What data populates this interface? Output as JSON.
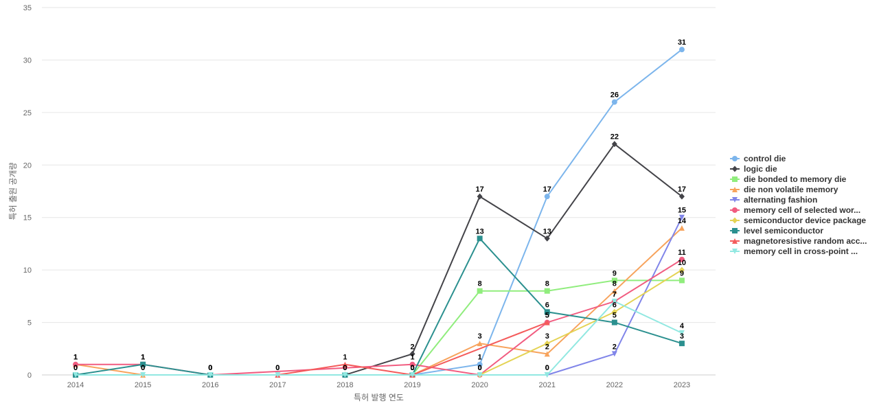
{
  "chart_data": {
    "type": "line",
    "xlabel": "특허 발행 연도",
    "ylabel": "특허 출원 공개량",
    "ylim": [
      0,
      35
    ],
    "yticks": [
      0,
      5,
      10,
      15,
      20,
      25,
      30,
      35
    ],
    "categories": [
      "2014",
      "2015",
      "2016",
      "2017",
      "2018",
      "2019",
      "2020",
      "2021",
      "2022",
      "2023"
    ],
    "grid": true,
    "legend_position": "right",
    "series": [
      {
        "name": "control die",
        "color": "#7cb5ec",
        "marker": "circle",
        "values": [
          null,
          null,
          null,
          null,
          null,
          0,
          1,
          17,
          26,
          31
        ]
      },
      {
        "name": "logic die",
        "color": "#434348",
        "marker": "diamond",
        "values": [
          null,
          null,
          null,
          null,
          0,
          2,
          17,
          13,
          22,
          17
        ]
      },
      {
        "name": "die bonded to memory die",
        "color": "#90ed7d",
        "marker": "square",
        "values": [
          null,
          null,
          null,
          null,
          null,
          0,
          8,
          8,
          9,
          9
        ]
      },
      {
        "name": "die non volatile memory",
        "color": "#f7a35c",
        "marker": "triangle",
        "values": [
          1,
          0,
          null,
          null,
          null,
          0,
          3,
          2,
          8,
          14
        ]
      },
      {
        "name": "alternating fashion",
        "color": "#8085e9",
        "marker": "triangle-down",
        "values": [
          null,
          null,
          null,
          null,
          null,
          null,
          null,
          0,
          2,
          15
        ]
      },
      {
        "name": "memory cell of selected wor...",
        "color": "#f15c80",
        "marker": "circle",
        "values": [
          1,
          1,
          0,
          null,
          null,
          1,
          0,
          5,
          7,
          11
        ]
      },
      {
        "name": "semiconductor device package",
        "color": "#e4d354",
        "marker": "diamond",
        "values": [
          null,
          null,
          null,
          null,
          null,
          null,
          0,
          3,
          6,
          10
        ]
      },
      {
        "name": "level semiconductor",
        "color": "#2b908f",
        "marker": "square",
        "values": [
          0,
          1,
          0,
          null,
          0,
          0,
          13,
          6,
          5,
          3
        ]
      },
      {
        "name": "magnetoresistive random acc...",
        "color": "#f45b5b",
        "marker": "triangle",
        "values": [
          null,
          null,
          null,
          0,
          1,
          0,
          null,
          5,
          null,
          null
        ]
      },
      {
        "name": "memory cell in cross-point ...",
        "color": "#91e8e1",
        "marker": "triangle-down",
        "values": [
          0,
          0,
          0,
          0,
          0,
          0,
          0,
          0,
          7,
          4
        ]
      }
    ]
  }
}
